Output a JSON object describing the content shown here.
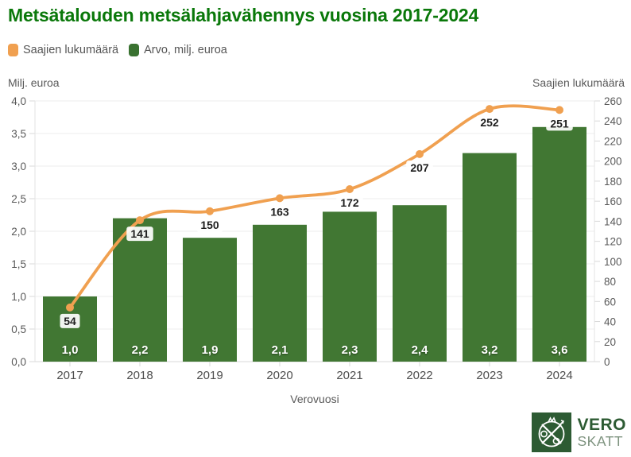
{
  "page": {
    "title": "Metsätalouden metsälahjavähennys vuosina 2017-2024"
  },
  "legend": {
    "items": [
      {
        "label": "Saajien lukumäärä",
        "color": "#f0a050"
      },
      {
        "label": "Arvo, milj. euroa",
        "color": "#3a7231"
      }
    ]
  },
  "axis_captions": {
    "left": "Milj. euroa",
    "right": "Saajien lukumäärä"
  },
  "chart_data": {
    "type": "bar+line",
    "title": "Metsätalouden metsälahjavähennys vuosina 2017-2024",
    "xlabel": "Verovuosi",
    "categories": [
      "2017",
      "2018",
      "2019",
      "2020",
      "2021",
      "2022",
      "2023",
      "2024"
    ],
    "series": [
      {
        "name": "Arvo, milj. euroa",
        "type": "bar",
        "axis": "left",
        "color": "#417733",
        "values": [
          1.0,
          2.2,
          1.9,
          2.1,
          2.3,
          2.4,
          3.2,
          3.6
        ],
        "labels": [
          "1,0",
          "2,2",
          "1,9",
          "2,1",
          "2,3",
          "2,4",
          "3,2",
          "3,6"
        ]
      },
      {
        "name": "Saajien lukumäärä",
        "type": "line",
        "axis": "right",
        "color": "#f0a050",
        "values": [
          54,
          141,
          150,
          163,
          172,
          207,
          252,
          251
        ],
        "labels": [
          "54",
          "141",
          "150",
          "163",
          "172",
          "207",
          "252",
          "251"
        ]
      }
    ],
    "left_axis": {
      "caption": "Milj. euroa",
      "min": 0,
      "max": 4,
      "tick_labels": [
        "0,0",
        "0,5",
        "1,0",
        "1,5",
        "2,0",
        "2,5",
        "3,0",
        "3,5",
        "4,0"
      ]
    },
    "right_axis": {
      "caption": "Saajien lukumäärä",
      "min": 0,
      "max": 260,
      "tick_labels": [
        "0",
        "20",
        "40",
        "60",
        "80",
        "100",
        "120",
        "140",
        "160",
        "180",
        "200",
        "220",
        "240",
        "260"
      ]
    },
    "grid": true,
    "legend_position": "top-left"
  },
  "logo": {
    "line1": "VERO",
    "line2": "SKATT"
  },
  "colors": {
    "title_green": "#0a780a",
    "bar_green": "#417733",
    "line_orange": "#f0a050",
    "logo_green": "#2d5b33",
    "grid": "#ececec",
    "axis": "#d9d9d9"
  }
}
